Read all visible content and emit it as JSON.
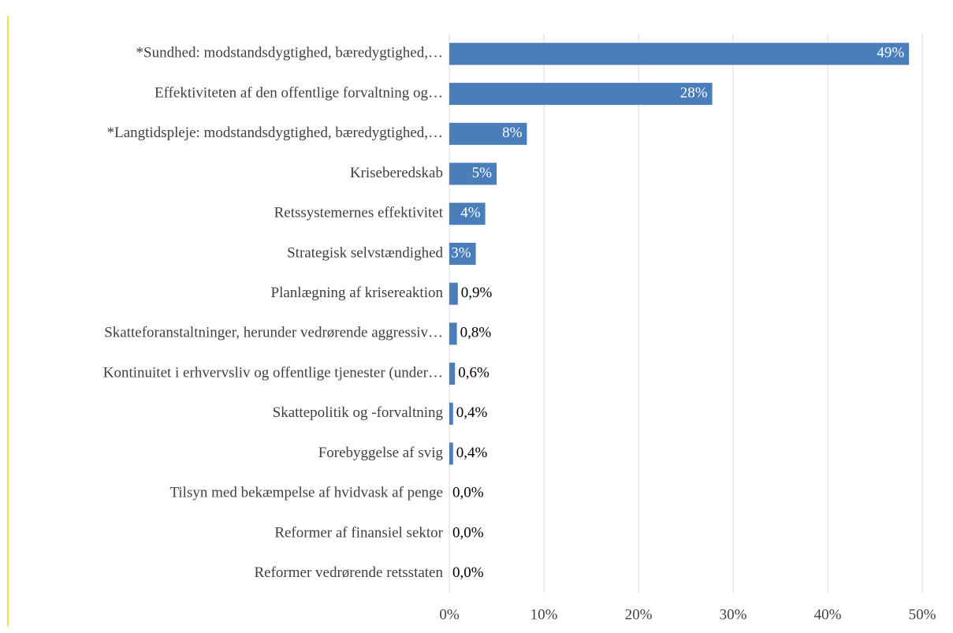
{
  "chart_data": {
    "type": "bar",
    "orientation": "horizontal",
    "categories": [
      "*Sundhed: modstandsdygtighed, bæredygtighed,…",
      "Effektiviteten af den offentlige forvaltning og…",
      "*Langtidspleje: modstandsdygtighed, bæredygtighed,…",
      "Kriseberedskab",
      "Retssystemernes effektivitet",
      "Strategisk selvstændighed",
      "Planlægning af krisereaktion",
      "Skatteforanstaltninger, herunder vedrørende aggressiv…",
      "Kontinuitet i erhvervsliv og offentlige tjenester (under…",
      "Skattepolitik og -forvaltning",
      "Forebyggelse af svig",
      "Tilsyn med bekæmpelse af hvidvask af penge",
      "Reformer af finansiel sektor",
      "Reformer vedrørende retsstaten"
    ],
    "values": [
      48.6,
      27.8,
      8.2,
      5,
      3.8,
      2.8,
      0.9,
      0.8,
      0.6,
      0.4,
      0.4,
      0,
      0,
      0
    ],
    "value_labels": [
      "49%",
      "28%",
      "8%",
      "5%",
      "4%",
      "3%",
      "0,9%",
      "0,8%",
      "0,6%",
      "0,4%",
      "0,4%",
      "0,0%",
      "0,0%",
      "0,0%"
    ],
    "color": "#4a7ebb",
    "xlim": [
      0,
      50
    ],
    "xticks": [
      {
        "value": 0,
        "label": "0%"
      },
      {
        "value": 10,
        "label": "10%"
      },
      {
        "value": 20,
        "label": "20%"
      },
      {
        "value": 30,
        "label": "30%"
      },
      {
        "value": 40,
        "label": "40%"
      },
      {
        "value": 50,
        "label": "50%"
      }
    ],
    "grid": true
  }
}
